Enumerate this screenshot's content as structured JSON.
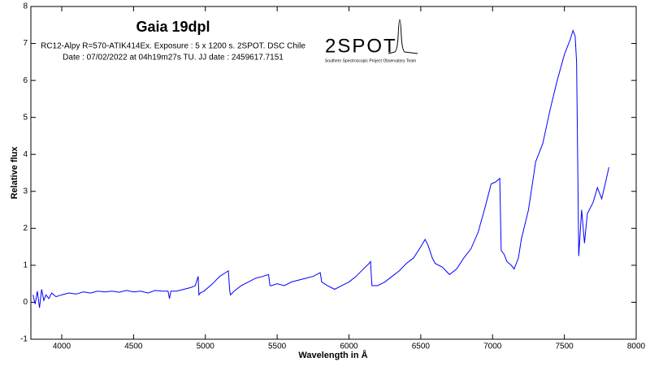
{
  "chart_data": {
    "type": "line",
    "title": "Gaia 19dpl",
    "subtitle": [
      "RC12-Alpy R=570-ATIK414Ex. Exposure : 5 x 1200 s. 2SPOT. DSC Chile",
      "Date : 07/02/2022 at 04h19m27s TU. JJ date : 2459617.7151"
    ],
    "annotations": [
      "2SPOT",
      "Southern Spectroscopic Project Observatory Team"
    ],
    "x_label": "Wavelength in Å",
    "y_label": "Relative flux",
    "x": [
      3800,
      3815,
      3830,
      3845,
      3860,
      3875,
      3890,
      3910,
      3930,
      3960,
      4000,
      4050,
      4100,
      4150,
      4200,
      4250,
      4300,
      4350,
      4400,
      4450,
      4500,
      4550,
      4600,
      4650,
      4700,
      4740,
      4750,
      4760,
      4800,
      4850,
      4900,
      4930,
      4950,
      4955,
      4965,
      4990,
      5050,
      5100,
      5140,
      5160,
      5170,
      5175,
      5200,
      5250,
      5300,
      5350,
      5400,
      5440,
      5450,
      5460,
      5500,
      5550,
      5600,
      5650,
      5700,
      5750,
      5800,
      5810,
      5850,
      5900,
      5950,
      6000,
      6050,
      6100,
      6140,
      6150,
      6160,
      6200,
      6250,
      6300,
      6350,
      6400,
      6450,
      6500,
      6530,
      6550,
      6580,
      6600,
      6650,
      6700,
      6750,
      6800,
      6850,
      6900,
      6950,
      6990,
      7020,
      7050,
      7060,
      7080,
      7100,
      7130,
      7150,
      7180,
      7200,
      7250,
      7300,
      7350,
      7400,
      7450,
      7500,
      7540,
      7560,
      7575,
      7585,
      7600,
      7620,
      7640,
      7660,
      7700,
      7730,
      7760,
      7790,
      7810
    ],
    "values": [
      0.2,
      -0.05,
      0.3,
      -0.15,
      0.35,
      0.05,
      0.2,
      0.1,
      0.25,
      0.15,
      0.2,
      0.25,
      0.22,
      0.28,
      0.25,
      0.3,
      0.28,
      0.3,
      0.27,
      0.32,
      0.28,
      0.3,
      0.25,
      0.32,
      0.3,
      0.3,
      0.1,
      0.3,
      0.3,
      0.35,
      0.4,
      0.45,
      0.7,
      0.2,
      0.25,
      0.3,
      0.5,
      0.7,
      0.8,
      0.85,
      0.3,
      0.2,
      0.3,
      0.45,
      0.55,
      0.65,
      0.7,
      0.75,
      0.45,
      0.45,
      0.5,
      0.45,
      0.55,
      0.6,
      0.65,
      0.7,
      0.8,
      0.55,
      0.45,
      0.35,
      0.45,
      0.55,
      0.7,
      0.9,
      1.05,
      1.1,
      0.45,
      0.45,
      0.55,
      0.7,
      0.85,
      1.05,
      1.2,
      1.5,
      1.7,
      1.55,
      1.2,
      1.05,
      0.95,
      0.75,
      0.9,
      1.2,
      1.45,
      1.9,
      2.6,
      3.2,
      3.25,
      3.35,
      1.4,
      1.3,
      1.1,
      1.0,
      0.9,
      1.2,
      1.7,
      2.5,
      3.8,
      4.3,
      5.2,
      6.0,
      6.7,
      7.1,
      7.35,
      7.2,
      6.5,
      1.25,
      2.5,
      1.6,
      2.4,
      2.7,
      3.1,
      2.8,
      3.3,
      3.65
    ],
    "color": "#0000ff",
    "xlim": [
      3785,
      8000
    ],
    "ylim": [
      -1,
      8
    ],
    "xticks": [
      4000,
      4500,
      5000,
      5500,
      6000,
      6500,
      7000,
      7500,
      8000
    ],
    "yticks": [
      -1,
      0,
      1,
      2,
      3,
      4,
      5,
      6,
      7,
      8
    ]
  }
}
